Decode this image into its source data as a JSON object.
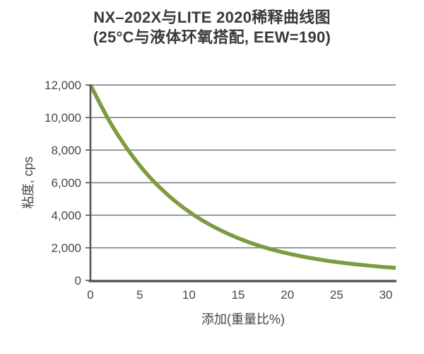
{
  "title": {
    "line1": "NX–202X与LITE 2020稀释曲线图",
    "line2": "(25°C与液体环氧搭配, EEW=190)"
  },
  "colors": {
    "curve": "#7d9b41",
    "grid": "#77787a",
    "axis": "#57585a",
    "tick_text": "#454648",
    "title_text": "#3a3a3c",
    "background": "#ffffff"
  },
  "chart_data": {
    "type": "line",
    "title": "NX–202X与LITE 2020稀释曲线图",
    "subtitle": "(25°C与液体环氧搭配, EEW=190)",
    "xlabel": "添加(重量比%)",
    "ylabel": "粘度, cps",
    "x": [
      0,
      2,
      4,
      6,
      8,
      10,
      12,
      14,
      16,
      18,
      20,
      22,
      24,
      26,
      28,
      30,
      31
    ],
    "series": [
      {
        "name": "viscosity-dilution-curve",
        "values": [
          12000,
          9700,
          7850,
          6350,
          5170,
          4220,
          3460,
          2850,
          2360,
          1970,
          1660,
          1410,
          1210,
          1050,
          920,
          810,
          770
        ]
      }
    ],
    "xlim": [
      0,
      31
    ],
    "ylim": [
      0,
      12000
    ],
    "x_ticks": [
      0,
      5,
      10,
      15,
      20,
      25,
      30
    ],
    "y_ticks": [
      0,
      2000,
      4000,
      6000,
      8000,
      10000,
      12000
    ],
    "y_tick_labels": [
      "0",
      "2,000",
      "4,000",
      "6,000",
      "8,000",
      "10,000",
      "12,000"
    ],
    "grid": "horizontal",
    "legend": "none",
    "line_color": "#7d9b41"
  }
}
